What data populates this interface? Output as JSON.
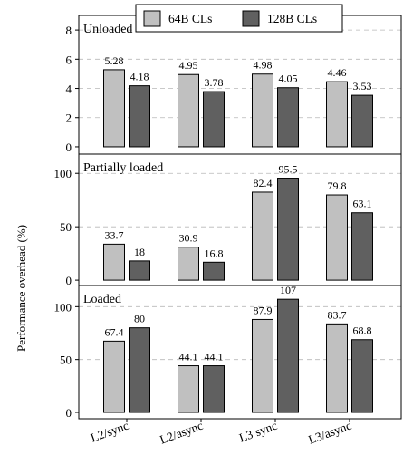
{
  "chart_data": [
    {
      "type": "bar",
      "title": "Unloaded",
      "categories": [
        "L2/sync",
        "L2/async",
        "L3/sync",
        "L3/async"
      ],
      "series": [
        {
          "name": "64B CLs",
          "values": [
            5.28,
            4.95,
            4.98,
            4.46
          ]
        },
        {
          "name": "128B CLs",
          "values": [
            4.18,
            3.78,
            4.05,
            3.53
          ]
        }
      ],
      "value_labels": [
        [
          "5.28",
          "4.95",
          "4.98",
          "4.46"
        ],
        [
          "4.18",
          "3.78",
          "4.05",
          "3.53"
        ]
      ],
      "yticks": [
        "0",
        "2",
        "4",
        "6",
        "8"
      ],
      "ytick_values": [
        0,
        2,
        4,
        6,
        8
      ],
      "ylim": [
        -0.5,
        9
      ]
    },
    {
      "type": "bar",
      "title": "Partially loaded",
      "categories": [
        "L2/sync",
        "L2/async",
        "L3/sync",
        "L3/async"
      ],
      "series": [
        {
          "name": "64B CLs",
          "values": [
            33.7,
            30.9,
            82.4,
            79.8
          ]
        },
        {
          "name": "128B CLs",
          "values": [
            18,
            16.8,
            95.5,
            63.1
          ]
        }
      ],
      "value_labels": [
        [
          "33.7",
          "30.9",
          "82.4",
          "79.8"
        ],
        [
          "18",
          "16.8",
          "95.5",
          "63.1"
        ]
      ],
      "yticks": [
        "0",
        "50",
        "100"
      ],
      "ytick_values": [
        0,
        50,
        100
      ],
      "ylim": [
        -5,
        118
      ]
    },
    {
      "type": "bar",
      "title": "Loaded",
      "categories": [
        "L2/sync",
        "L2/async",
        "L3/sync",
        "L3/async"
      ],
      "series": [
        {
          "name": "64B CLs",
          "values": [
            67.4,
            44.1,
            87.9,
            83.7
          ]
        },
        {
          "name": "128B CLs",
          "values": [
            80,
            44.1,
            107,
            68.8
          ]
        }
      ],
      "value_labels": [
        [
          "67.4",
          "44.1",
          "87.9",
          "83.7"
        ],
        [
          "80",
          "44.1",
          "107",
          "68.8"
        ]
      ],
      "yticks": [
        "0",
        "50",
        "100"
      ],
      "ytick_values": [
        0,
        50,
        100
      ],
      "ylim": [
        -6,
        120
      ]
    }
  ],
  "ylabel": "Performance overhead (%)",
  "legend": {
    "placement": "top-center",
    "entries": [
      {
        "name": "64B CLs",
        "color": "#c0c0c0"
      },
      {
        "name": "128B CLs",
        "color": "#606060"
      }
    ]
  },
  "grid": "horizontal dashed",
  "bar_edge_color": "#000000"
}
